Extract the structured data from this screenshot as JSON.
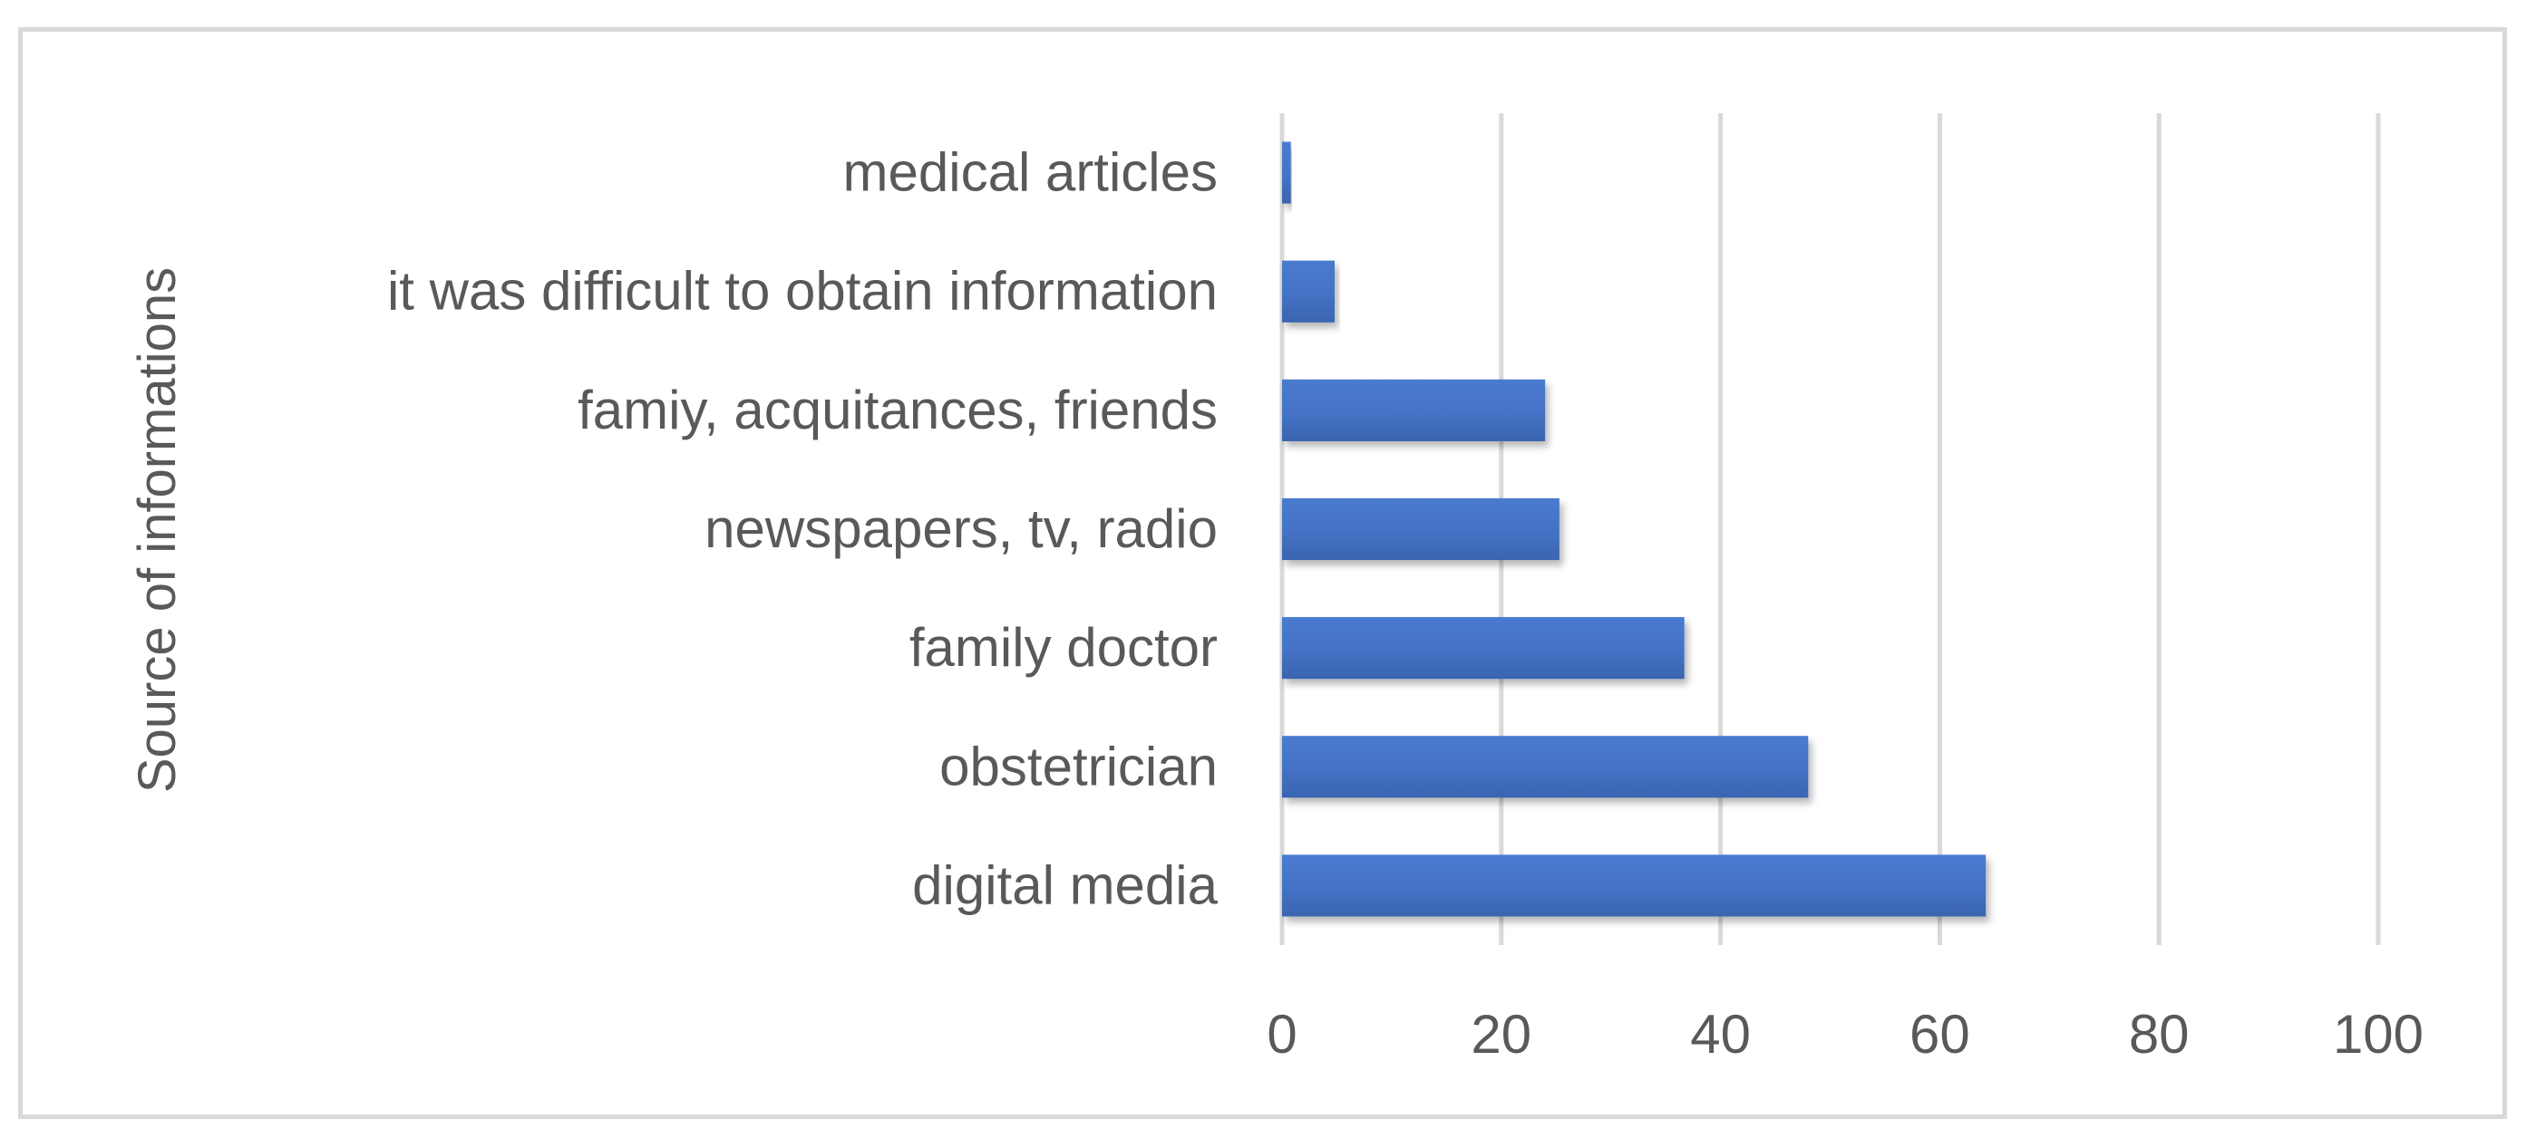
{
  "chart_data": {
    "type": "bar",
    "orientation": "horizontal",
    "categories": [
      "medical articles",
      "it was difficult to obtain information",
      "famiy, acquitances, friends",
      "newspapers, tv, radio",
      "family doctor",
      "obstetrician",
      "digital media"
    ],
    "values": [
      0.8,
      4.8,
      24,
      25.3,
      36.7,
      48,
      64.2
    ],
    "title": "",
    "xlabel": "",
    "ylabel": "Source of informations",
    "xlim": [
      0,
      100
    ],
    "xticks": [
      "0",
      "20",
      "40",
      "60",
      "80",
      "100"
    ],
    "grid": true,
    "legend": "none",
    "colors": {
      "bar": "#4472c4",
      "bar_dark": "#3a64b0",
      "grid": "#d9d9d9",
      "text": "#595959"
    }
  }
}
